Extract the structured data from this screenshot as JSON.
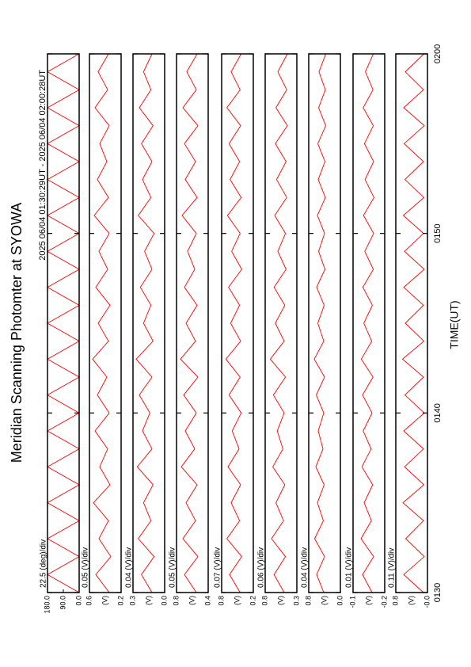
{
  "header": {
    "title": "Meridian Scanning Photomter at SYOWA",
    "subtitle": "2025 06/04 01:30:29UT - 2025 06/04 02:00:28UT"
  },
  "chart_data": [
    {
      "type": "line",
      "label": "22.5 (deg)/div",
      "xlim": [
        0,
        30
      ],
      "ylim": [
        0,
        180
      ],
      "yticks": [
        {
          "value": 180,
          "label": "180.0"
        },
        {
          "value": 90,
          "label": "90.0"
        },
        {
          "value": 0,
          "label": "0.0"
        }
      ],
      "x": [
        0,
        1,
        2,
        3,
        4,
        5,
        6,
        7,
        8,
        9,
        10,
        11,
        12,
        13,
        14,
        15,
        16,
        17,
        18,
        19,
        20,
        21,
        22,
        23,
        24,
        25,
        26,
        27,
        28,
        29,
        30
      ],
      "series": [
        {
          "color": "#ff0000",
          "values": [
            0,
            180,
            0,
            180,
            0,
            180,
            0,
            180,
            0,
            180,
            0,
            180,
            0,
            180,
            0,
            180,
            0,
            180,
            0,
            180,
            0,
            180,
            0,
            180,
            0,
            180,
            0,
            180,
            0,
            180,
            0
          ]
        }
      ]
    },
    {
      "type": "line",
      "label": "0.05 (V)/div",
      "ylabel": "(V)",
      "xlim": [
        0,
        30
      ],
      "ylim": [
        0.2,
        0.6
      ],
      "yticks": [
        0.6,
        0.2
      ],
      "x": [
        0,
        1,
        2,
        3,
        4,
        5,
        6,
        7,
        8,
        9,
        10,
        11,
        12,
        13,
        14,
        15,
        16,
        17,
        18,
        19,
        20,
        21,
        22,
        23,
        24,
        25,
        26,
        27,
        28,
        29,
        30
      ],
      "series": [
        {
          "color": "#ff0000",
          "values": [
            0.35,
            0.52,
            0.33,
            0.48,
            0.36,
            0.55,
            0.34,
            0.47,
            0.37,
            0.53,
            0.35,
            0.5,
            0.38,
            0.56,
            0.36,
            0.49,
            0.34,
            0.52,
            0.37,
            0.48,
            0.35,
            0.54,
            0.36,
            0.5,
            0.38,
            0.47,
            0.35,
            0.53,
            0.37,
            0.49,
            0.36
          ]
        }
      ]
    },
    {
      "type": "line",
      "label": "0.04 (V)/div",
      "ylabel": "(V)",
      "xlim": [
        0,
        30
      ],
      "ylim": [
        0,
        0.3
      ],
      "yticks": [
        0.3,
        {
          "value": 0,
          "label": "0.0"
        }
      ],
      "x": [
        0,
        1,
        2,
        3,
        4,
        5,
        6,
        7,
        8,
        9,
        10,
        11,
        12,
        13,
        14,
        15,
        16,
        17,
        18,
        19,
        20,
        21,
        22,
        23,
        24,
        25,
        26,
        27,
        28,
        29,
        30
      ],
      "series": [
        {
          "color": "#ff0000",
          "values": [
            0.12,
            0.22,
            0.1,
            0.25,
            0.13,
            0.2,
            0.11,
            0.26,
            0.12,
            0.21,
            0.14,
            0.24,
            0.12,
            0.27,
            0.11,
            0.2,
            0.13,
            0.23,
            0.12,
            0.19,
            0.1,
            0.25,
            0.13,
            0.21,
            0.12,
            0.22,
            0.11,
            0.24,
            0.13,
            0.2,
            0.12
          ]
        }
      ]
    },
    {
      "type": "line",
      "label": "0.05 (V)/div",
      "ylabel": "(V)",
      "xlim": [
        0,
        30
      ],
      "ylim": [
        0.4,
        0.8
      ],
      "yticks": [
        0.8,
        0.4
      ],
      "x": [
        0,
        1,
        2,
        3,
        4,
        5,
        6,
        7,
        8,
        9,
        10,
        11,
        12,
        13,
        14,
        15,
        16,
        17,
        18,
        19,
        20,
        21,
        22,
        23,
        24,
        25,
        26,
        27,
        28,
        29,
        30
      ],
      "series": [
        {
          "color": "#ff0000",
          "values": [
            0.55,
            0.7,
            0.53,
            0.72,
            0.56,
            0.68,
            0.54,
            0.74,
            0.57,
            0.69,
            0.55,
            0.71,
            0.53,
            0.75,
            0.56,
            0.68,
            0.54,
            0.7,
            0.57,
            0.66,
            0.55,
            0.73,
            0.54,
            0.69,
            0.56,
            0.7,
            0.53,
            0.72,
            0.55,
            0.67,
            0.54
          ]
        }
      ]
    },
    {
      "type": "line",
      "label": "0.07 (V)/div",
      "ylabel": "(V)",
      "xlim": [
        0,
        30
      ],
      "ylim": [
        0.2,
        0.8
      ],
      "yticks": [
        0.8,
        0.2
      ],
      "x": [
        0,
        1,
        2,
        3,
        4,
        5,
        6,
        7,
        8,
        9,
        10,
        11,
        12,
        13,
        14,
        15,
        16,
        17,
        18,
        19,
        20,
        21,
        22,
        23,
        24,
        25,
        26,
        27,
        28,
        29,
        30
      ],
      "series": [
        {
          "color": "#ff0000",
          "values": [
            0.45,
            0.65,
            0.42,
            0.7,
            0.46,
            0.62,
            0.44,
            0.68,
            0.47,
            0.6,
            0.43,
            0.66,
            0.45,
            0.72,
            0.44,
            0.63,
            0.46,
            0.67,
            0.42,
            0.61,
            0.45,
            0.69,
            0.43,
            0.64,
            0.46,
            0.66,
            0.44,
            0.7,
            0.45,
            0.62,
            0.43
          ]
        }
      ]
    },
    {
      "type": "line",
      "label": "0.06 (V)/div",
      "ylabel": "(V)",
      "xlim": [
        0,
        30
      ],
      "ylim": [
        0.3,
        0.8
      ],
      "yticks": [
        0.8,
        0.3
      ],
      "x": [
        0,
        1,
        2,
        3,
        4,
        5,
        6,
        7,
        8,
        9,
        10,
        11,
        12,
        13,
        14,
        15,
        16,
        17,
        18,
        19,
        20,
        21,
        22,
        23,
        24,
        25,
        26,
        27,
        28,
        29,
        30
      ],
      "series": [
        {
          "color": "#ff0000",
          "values": [
            0.5,
            0.66,
            0.48,
            0.7,
            0.51,
            0.63,
            0.49,
            0.68,
            0.52,
            0.61,
            0.5,
            0.67,
            0.48,
            0.72,
            0.5,
            0.64,
            0.49,
            0.66,
            0.47,
            0.6,
            0.48,
            0.65,
            0.46,
            0.62,
            0.47,
            0.64,
            0.45,
            0.63,
            0.46,
            0.6,
            0.45
          ]
        }
      ]
    },
    {
      "type": "line",
      "label": "0.04 (V)/div",
      "ylabel": "(V)",
      "xlim": [
        0,
        30
      ],
      "ylim": [
        0,
        0.8
      ],
      "yticks": [
        0.8,
        {
          "value": 0,
          "label": "0.0"
        }
      ],
      "x": [
        0,
        1,
        2,
        3,
        4,
        5,
        6,
        7,
        8,
        9,
        10,
        11,
        12,
        13,
        14,
        15,
        16,
        17,
        18,
        19,
        20,
        21,
        22,
        23,
        24,
        25,
        26,
        27,
        28,
        29,
        30
      ],
      "series": [
        {
          "color": "#ff0000",
          "values": [
            0.42,
            0.6,
            0.4,
            0.65,
            0.43,
            0.58,
            0.41,
            0.62,
            0.44,
            0.56,
            0.42,
            0.61,
            0.4,
            0.66,
            0.42,
            0.57,
            0.41,
            0.6,
            0.39,
            0.55,
            0.4,
            0.58,
            0.38,
            0.56,
            0.39,
            0.57,
            0.37,
            0.55,
            0.38,
            0.54,
            0.37
          ]
        }
      ]
    },
    {
      "type": "line",
      "label": "0.01 (V)/div",
      "ylabel": "(V)",
      "xlim": [
        0,
        30
      ],
      "ylim": [
        -0.2,
        -0.1
      ],
      "yticks": [
        -0.1,
        -0.2
      ],
      "x": [
        0,
        1,
        2,
        3,
        4,
        5,
        6,
        7,
        8,
        9,
        10,
        11,
        12,
        13,
        14,
        15,
        16,
        17,
        18,
        19,
        20,
        21,
        22,
        23,
        24,
        25,
        26,
        27,
        28,
        29,
        30
      ],
      "series": [
        {
          "color": "#ff0000",
          "values": [
            -0.16,
            -0.13,
            -0.165,
            -0.125,
            -0.158,
            -0.135,
            -0.162,
            -0.128,
            -0.157,
            -0.132,
            -0.16,
            -0.13,
            -0.163,
            -0.126,
            -0.159,
            -0.134,
            -0.161,
            -0.131,
            -0.164,
            -0.137,
            -0.165,
            -0.133,
            -0.166,
            -0.138,
            -0.165,
            -0.136,
            -0.164,
            -0.132,
            -0.163,
            -0.139,
            -0.164
          ]
        }
      ]
    },
    {
      "type": "line",
      "label": "0.11 (V)/div",
      "ylabel": "(V)",
      "xlabel": "TIME(UT)",
      "xlim": [
        0,
        30
      ],
      "ylim": [
        0,
        0.8
      ],
      "yticks": [
        0.8,
        {
          "value": 0,
          "label": "-0.0"
        }
      ],
      "xticks": [
        {
          "value": 0,
          "label": "0130"
        },
        {
          "value": 10,
          "label": "0140"
        },
        {
          "value": 20,
          "label": "0150"
        },
        {
          "value": 30,
          "label": "0200"
        }
      ],
      "x": [
        0,
        1,
        2,
        3,
        4,
        5,
        6,
        7,
        8,
        9,
        10,
        11,
        12,
        13,
        14,
        15,
        16,
        17,
        18,
        19,
        20,
        21,
        22,
        23,
        24,
        25,
        26,
        27,
        28,
        29,
        30
      ],
      "series": [
        {
          "color": "#ff0000",
          "values": [
            0.1,
            0.6,
            0.08,
            0.55,
            0.1,
            0.62,
            0.09,
            0.58,
            0.1,
            0.6,
            0.08,
            0.57,
            0.1,
            0.63,
            0.09,
            0.56,
            0.1,
            0.6,
            0.08,
            0.58,
            0.1,
            0.61,
            0.09,
            0.57,
            0.1,
            0.59,
            0.08,
            0.6,
            0.1,
            0.56,
            0.09
          ]
        }
      ]
    }
  ]
}
